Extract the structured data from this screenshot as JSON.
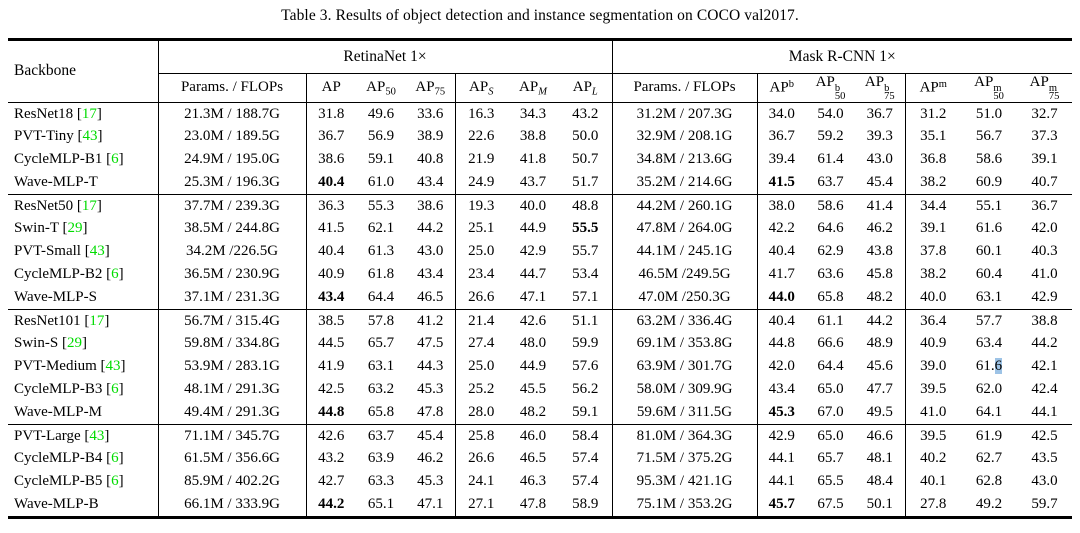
{
  "title": "Table 3. Results of object detection and instance segmentation on COCO val2017.",
  "table": {
    "backbone_header": "Backbone",
    "sections": [
      {
        "title": "RetinaNet 1×",
        "cols": [
          {
            "text": "Params. / FLOPs"
          },
          {
            "base": "AP"
          },
          {
            "base": "AP",
            "sub": "50"
          },
          {
            "base": "AP",
            "sub": "75"
          },
          {
            "base": "AP",
            "sub": "S",
            "it": true
          },
          {
            "base": "AP",
            "sub": "M",
            "it": true
          },
          {
            "base": "AP",
            "sub": "L",
            "it": true
          }
        ]
      },
      {
        "title": "Mask R-CNN 1×",
        "cols": [
          {
            "text": "Params. / FLOPs"
          },
          {
            "base": "AP",
            "sup": "b"
          },
          {
            "base": "AP",
            "sup": "b",
            "sub": "50"
          },
          {
            "base": "AP",
            "sup": "b",
            "sub": "75"
          },
          {
            "base": "AP",
            "sup": "m"
          },
          {
            "base": "AP",
            "sup": "m",
            "sub": "50"
          },
          {
            "base": "AP",
            "sup": "m",
            "sub": "75"
          }
        ]
      }
    ],
    "accent_colors": {
      "citation_green": "#00DC00",
      "selection_blue": "#9DC3E6"
    },
    "row_groups": [
      [
        {
          "name": "ResNet18",
          "ref": "17",
          "retina": {
            "params": "21.3M / 188.7G",
            "vals": [
              "31.8",
              "49.6",
              "33.6",
              "16.3",
              "34.3",
              "43.2"
            ]
          },
          "mask": {
            "params": "31.2M / 207.3G",
            "vals": [
              "34.0",
              "54.0",
              "36.7",
              "31.2",
              "51.0",
              "32.7"
            ]
          }
        },
        {
          "name": "PVT-Tiny",
          "ref": "43",
          "retina": {
            "params": "23.0M / 189.5G",
            "vals": [
              "36.7",
              "56.9",
              "38.9",
              "22.6",
              "38.8",
              "50.0"
            ]
          },
          "mask": {
            "params": "32.9M / 208.1G",
            "vals": [
              "36.7",
              "59.2",
              "39.3",
              "35.1",
              "56.7",
              "37.3"
            ]
          }
        },
        {
          "name": "CycleMLP-B1",
          "ref": "6",
          "retina": {
            "params": "24.9M / 195.0G",
            "vals": [
              "38.6",
              "59.1",
              "40.8",
              "21.9",
              "41.8",
              "50.7"
            ]
          },
          "mask": {
            "params": "34.8M / 213.6G",
            "vals": [
              "39.4",
              "61.4",
              "43.0",
              "36.8",
              "58.6",
              "39.1"
            ]
          }
        },
        {
          "name": "Wave-MLP-T",
          "ref": null,
          "retina": {
            "params": "25.3M / 196.3G",
            "vals": [
              {
                "v": "40.4",
                "b": 1
              },
              "61.0",
              "43.4",
              "24.9",
              "43.7",
              "51.7"
            ]
          },
          "mask": {
            "params": "35.2M / 214.6G",
            "vals": [
              {
                "v": "41.5",
                "b": 1
              },
              "63.7",
              "45.4",
              "38.2",
              "60.9",
              "40.7"
            ]
          }
        }
      ],
      [
        {
          "name": "ResNet50",
          "ref": "17",
          "retina": {
            "params": "37.7M / 239.3G",
            "vals": [
              "36.3",
              "55.3",
              "38.6",
              "19.3",
              "40.0",
              "48.8"
            ]
          },
          "mask": {
            "params": "44.2M / 260.1G",
            "vals": [
              "38.0",
              "58.6",
              "41.4",
              "34.4",
              "55.1",
              "36.7"
            ]
          }
        },
        {
          "name": "Swin-T",
          "ref": "29",
          "retina": {
            "params": "38.5M / 244.8G",
            "vals": [
              "41.5",
              "62.1",
              "44.2",
              "25.1",
              "44.9",
              {
                "v": "55.5",
                "b": 1
              }
            ]
          },
          "mask": {
            "params": "47.8M / 264.0G",
            "vals": [
              "42.2",
              "64.6",
              "46.2",
              "39.1",
              "61.6",
              "42.0"
            ]
          }
        },
        {
          "name": "PVT-Small",
          "ref": "43",
          "retina": {
            "params": "34.2M /226.5G",
            "vals": [
              "40.4",
              "61.3",
              "43.0",
              "25.0",
              "42.9",
              "55.7"
            ]
          },
          "mask": {
            "params": "44.1M / 245.1G",
            "vals": [
              "40.4",
              "62.9",
              "43.8",
              "37.8",
              "60.1",
              "40.3"
            ]
          }
        },
        {
          "name": "CycleMLP-B2",
          "ref": "6",
          "retina": {
            "params": "36.5M / 230.9G",
            "vals": [
              "40.9",
              "61.8",
              "43.4",
              "23.4",
              "44.7",
              "53.4"
            ]
          },
          "mask": {
            "params": "46.5M /249.5G",
            "vals": [
              "41.7",
              "63.6",
              "45.8",
              "38.2",
              "60.4",
              "41.0"
            ]
          }
        },
        {
          "name": "Wave-MLP-S",
          "ref": null,
          "retina": {
            "params": "37.1M / 231.3G",
            "vals": [
              {
                "v": "43.4",
                "b": 1
              },
              "64.4",
              "46.5",
              "26.6",
              "47.1",
              "57.1"
            ]
          },
          "mask": {
            "params": "47.0M /250.3G",
            "vals": [
              {
                "v": "44.0",
                "b": 1
              },
              "65.8",
              "48.2",
              "40.0",
              "63.1",
              "42.9"
            ]
          }
        }
      ],
      [
        {
          "name": "ResNet101",
          "ref": "17",
          "retina": {
            "params": "56.7M / 315.4G",
            "vals": [
              "38.5",
              "57.8",
              "41.2",
              "21.4",
              "42.6",
              "51.1"
            ]
          },
          "mask": {
            "params": "63.2M / 336.4G",
            "vals": [
              "40.4",
              "61.1",
              "44.2",
              "36.4",
              "57.7",
              "38.8"
            ]
          }
        },
        {
          "name": "Swin-S",
          "ref": "29",
          "retina": {
            "params": "59.8M / 334.8G",
            "vals": [
              "44.5",
              "65.7",
              "47.5",
              "27.4",
              "48.0",
              "59.9"
            ]
          },
          "mask": {
            "params": "69.1M / 353.8G",
            "vals": [
              "44.8",
              "66.6",
              "48.9",
              "40.9",
              "63.4",
              "44.2"
            ]
          }
        },
        {
          "name": "PVT-Medium",
          "ref": "43",
          "retina": {
            "params": "53.9M / 283.1G",
            "vals": [
              "41.9",
              "63.1",
              "44.3",
              "25.0",
              "44.9",
              "57.6"
            ]
          },
          "mask": {
            "params": "63.9M / 301.7G",
            "vals": [
              "42.0",
              "64.4",
              "45.6",
              "39.0",
              {
                "v": "61.6",
                "sel": 1
              },
              "42.1"
            ]
          }
        },
        {
          "name": "CycleMLP-B3",
          "ref": "6",
          "retina": {
            "params": "48.1M / 291.3G",
            "vals": [
              "42.5",
              "63.2",
              "45.3",
              "25.2",
              "45.5",
              "56.2"
            ]
          },
          "mask": {
            "params": "58.0M / 309.9G",
            "vals": [
              "43.4",
              "65.0",
              "47.7",
              "39.5",
              "62.0",
              "42.4"
            ]
          }
        },
        {
          "name": "Wave-MLP-M",
          "ref": null,
          "retina": {
            "params": "49.4M / 291.3G",
            "vals": [
              {
                "v": "44.8",
                "b": 1
              },
              "65.8",
              "47.8",
              "28.0",
              "48.2",
              "59.1"
            ]
          },
          "mask": {
            "params": "59.6M / 311.5G",
            "vals": [
              {
                "v": "45.3",
                "b": 1
              },
              "67.0",
              "49.5",
              "41.0",
              "64.1",
              "44.1"
            ]
          }
        }
      ],
      [
        {
          "name": "PVT-Large",
          "ref": "43",
          "retina": {
            "params": "71.1M / 345.7G",
            "vals": [
              "42.6",
              "63.7",
              "45.4",
              "25.8",
              "46.0",
              "58.4"
            ]
          },
          "mask": {
            "params": "81.0M / 364.3G",
            "vals": [
              "42.9",
              "65.0",
              "46.6",
              "39.5",
              "61.9",
              "42.5"
            ]
          }
        },
        {
          "name": "CycleMLP-B4",
          "ref": "6",
          "retina": {
            "params": "61.5M / 356.6G",
            "vals": [
              "43.2",
              "63.9",
              "46.2",
              "26.6",
              "46.5",
              "57.4"
            ]
          },
          "mask": {
            "params": "71.5M / 375.2G",
            "vals": [
              "44.1",
              "65.7",
              "48.1",
              "40.2",
              "62.7",
              "43.5"
            ]
          }
        },
        {
          "name": "CycleMLP-B5",
          "ref": "6",
          "retina": {
            "params": "85.9M / 402.2G",
            "vals": [
              "42.7",
              "63.3",
              "45.3",
              "24.1",
              "46.3",
              "57.4"
            ]
          },
          "mask": {
            "params": "95.3M / 421.1G",
            "vals": [
              "44.1",
              "65.5",
              "48.4",
              "40.1",
              "62.8",
              "43.0"
            ]
          }
        },
        {
          "name": "Wave-MLP-B",
          "ref": null,
          "retina": {
            "params": "66.1M / 333.9G",
            "vals": [
              {
                "v": "44.2",
                "b": 1
              },
              "65.1",
              "47.1",
              "27.1",
              "47.8",
              "58.9"
            ]
          },
          "mask": {
            "params": "75.1M / 353.2G",
            "vals": [
              {
                "v": "45.7",
                "b": 1
              },
              "67.5",
              "50.1",
              "27.8",
              "49.2",
              "59.7"
            ]
          }
        }
      ]
    ]
  }
}
